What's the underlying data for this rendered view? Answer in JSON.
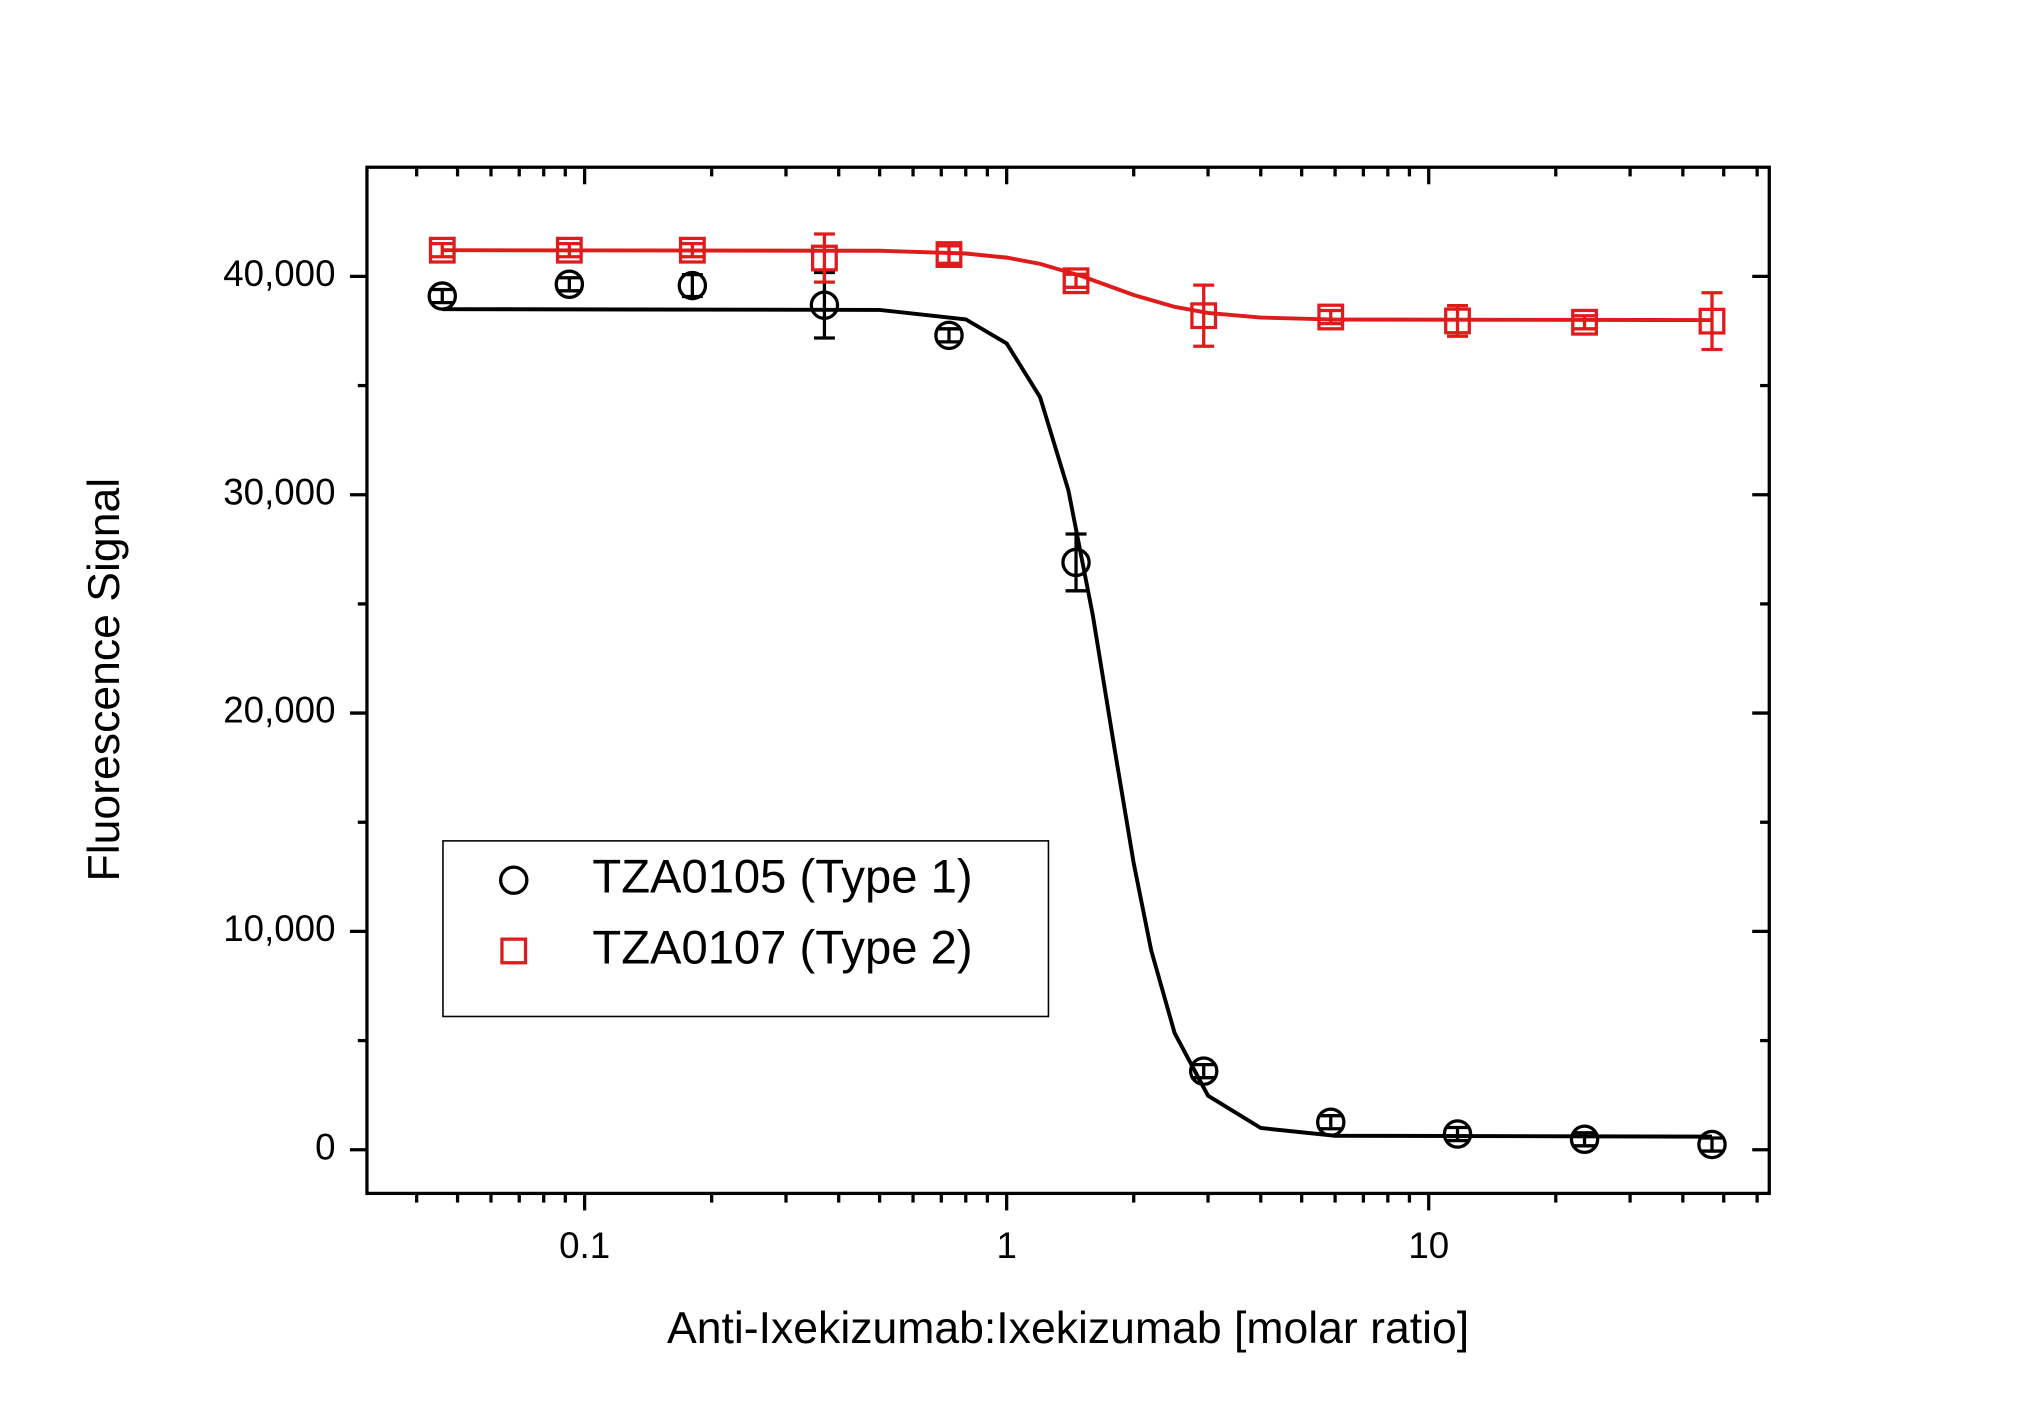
{
  "chart_data": {
    "type": "scatter",
    "x_label": "Anti-Ixekizumab:Ixekizumab [molar ratio]",
    "y_label": "Fluorescence Signal",
    "xscale": "log",
    "xlim": [
      0.0305,
      64.1
    ],
    "xticks": [
      0.1,
      1,
      10
    ],
    "xminorticks": [
      0.04,
      0.05,
      0.06,
      0.07,
      0.08,
      0.09,
      0.2,
      0.3,
      0.4,
      0.5,
      0.6,
      0.7,
      0.8,
      0.9,
      2,
      3,
      4,
      5,
      6,
      7,
      8,
      9,
      20,
      30,
      40,
      50,
      60
    ],
    "ylim": [
      -2000,
      45000
    ],
    "yticks": [
      0,
      {
        "value": 10000,
        "label": "10,000"
      },
      {
        "value": 20000,
        "label": "20,000"
      },
      {
        "value": 30000,
        "label": "30,000"
      },
      {
        "value": 40000,
        "label": "40,000"
      }
    ],
    "yminorticks": [
      5000,
      15000,
      25000,
      35000
    ],
    "legend": "center left",
    "x": [
      0.046,
      0.092,
      0.18,
      0.37,
      0.73,
      1.46,
      2.93,
      5.86,
      11.7,
      23.4,
      46.9
    ],
    "series": [
      {
        "name": "TZA0105 (Type 1)",
        "color": "#000000",
        "marker": "circle",
        "values": [
          39100,
          39640,
          39580,
          38680,
          37300,
          26900,
          3600,
          1260,
          720,
          480,
          240
        ],
        "errors": [
          300,
          300,
          500,
          1500,
          300,
          1300,
          300,
          300,
          300,
          300,
          300
        ],
        "curve": {
          "x": [
            0.046,
            0.5,
            0.8,
            1.0,
            1.2,
            1.4,
            1.6,
            1.8,
            2.0,
            2.2,
            2.5,
            3.0,
            4.0,
            6.0,
            46.9
          ],
          "values": [
            38500,
            38465,
            38032,
            36927,
            34470,
            30209,
            24481,
            18402,
            13121,
            9136,
            5343,
            2476,
            995,
            642,
            600
          ]
        }
      },
      {
        "name": "TZA0107 (Type 2)",
        "color": "#e01b1b",
        "marker": "square",
        "values": [
          41200,
          41200,
          41200,
          40840,
          41000,
          39800,
          38200,
          38140,
          37960,
          37900,
          37950
        ],
        "errors": [
          300,
          300,
          300,
          1100,
          400,
          300,
          1400,
          300,
          700,
          300,
          1300
        ],
        "curve": {
          "x": [
            0.046,
            0.5,
            0.8,
            1.0,
            1.2,
            1.5,
            2.0,
            2.5,
            3.0,
            4.0,
            6.0,
            46.9
          ],
          "values": [
            41200,
            41175,
            41048,
            40860,
            40574,
            40023,
            39147,
            38605,
            38328,
            38115,
            38024,
            38000
          ]
        }
      }
    ]
  }
}
